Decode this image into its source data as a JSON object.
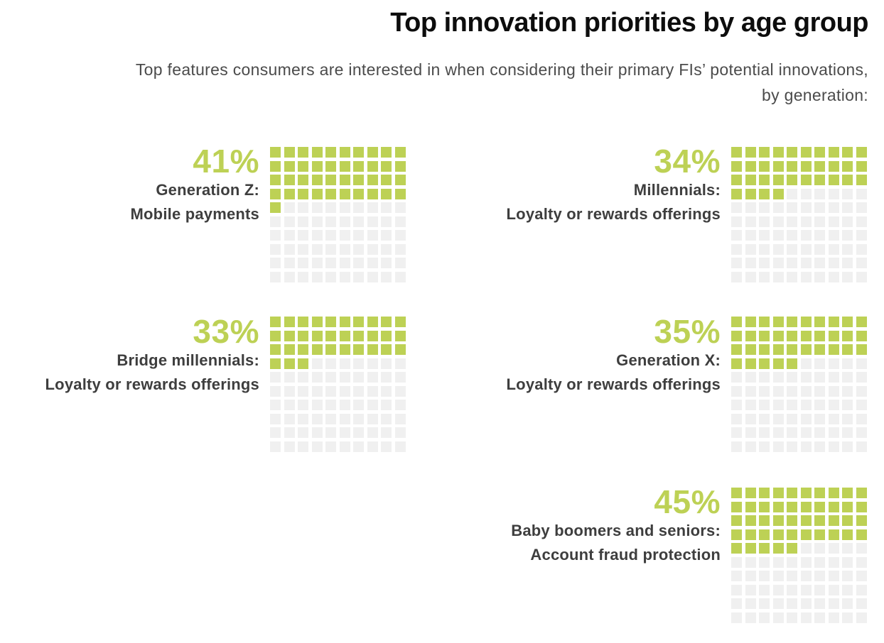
{
  "header": {
    "title": "Top innovation priorities by age group",
    "subtitle": "Top features consumers are interested in when considering their primary FIs’ potential innovations, by generation:"
  },
  "colors": {
    "accent_green": "#bdd155",
    "empty_square": "#f0f0f0",
    "label_text": "#3e3e3e",
    "subtitle_text": "#4b4b4b",
    "title_text": "#0d0d0d",
    "background": "#ffffff"
  },
  "chart_data": {
    "type": "waffle",
    "title": "Top innovation priorities by age group",
    "subtitle": "Top features consumers are interested in when considering their primary FIs’ potential innovations, by generation:",
    "grid": {
      "rows": 10,
      "columns": 10,
      "total_cells": 100
    },
    "fill_order": "left-to-right, top-to-bottom",
    "legend_position": "none",
    "units": "percent of consumers",
    "items": [
      {
        "value": 41,
        "percent_label": "41%",
        "group": "Generation Z:",
        "feature": "Mobile payments",
        "filled_cells": 41
      },
      {
        "value": 34,
        "percent_label": "34%",
        "group": "Millennials:",
        "feature": "Loyalty or rewards offerings",
        "filled_cells": 34
      },
      {
        "value": 33,
        "percent_label": "33%",
        "group": "Bridge millennials:",
        "feature": "Loyalty or rewards offerings",
        "filled_cells": 33
      },
      {
        "value": 35,
        "percent_label": "35%",
        "group": "Generation X:",
        "feature": "Loyalty or rewards offerings",
        "filled_cells": 35
      },
      {
        "value": 45,
        "percent_label": "45%",
        "group": "Baby boomers and seniors:",
        "feature": "Account fraud protection",
        "filled_cells": 45
      }
    ]
  }
}
